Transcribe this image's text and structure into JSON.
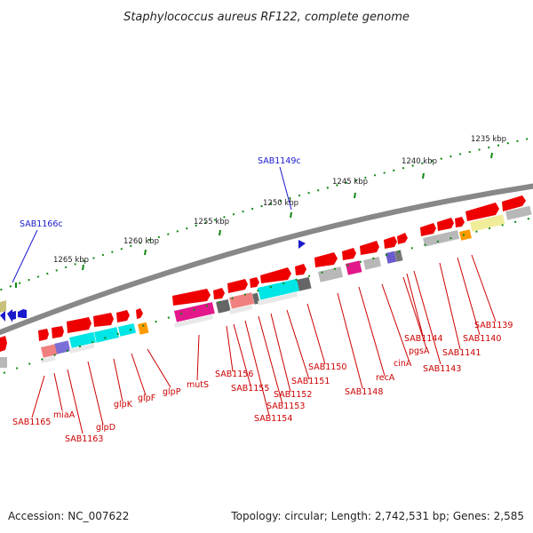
{
  "title": "Staphylococcus aureus RF122, complete genome",
  "footer": {
    "accession": "Accession: NC_007622",
    "summary": "Topology: circular; Length: 2,742,531 bp; Genes: 2,585"
  },
  "colors": {
    "forward_gene": "#ee0000",
    "backbone": "#888888",
    "tick": "#118811",
    "gene_label": "#cc0000",
    "highlight_label": "#1a1acc"
  },
  "kbp_labels": {
    "k1235": "1235 kbp",
    "k1240": "1240 kbp",
    "k1245": "1245 kbp",
    "k1250": "1250 kbp",
    "k1255": "1255 kbp",
    "k1260": "1260 kbp",
    "k1265": "1265 kbp"
  },
  "highlighted": {
    "sab1166c": "SAB1166c",
    "sab1149c": "SAB1149c"
  },
  "genes": {
    "sab1139": "SAB1139",
    "sab1140": "SAB1140",
    "sab1141": "SAB1141",
    "sab1143": "SAB1143",
    "sab1144": "SAB1144",
    "pgsA": "pgsA",
    "cinA": "cinA",
    "recA": "recA",
    "sab1148": "SAB1148",
    "sab1150": "SAB1150",
    "sab1151": "SAB1151",
    "sab1152": "SAB1152",
    "sab1153": "SAB1153",
    "sab1154": "SAB1154",
    "sab1155": "SAB1155",
    "sab1156": "SAB1156",
    "mutS": "mutS",
    "glpP": "glpP",
    "glpF": "glpF",
    "glpK": "glpK",
    "glpD": "glpD",
    "sab1163": "SAB1163",
    "miaA": "miaA",
    "sab1165": "SAB1165"
  }
}
